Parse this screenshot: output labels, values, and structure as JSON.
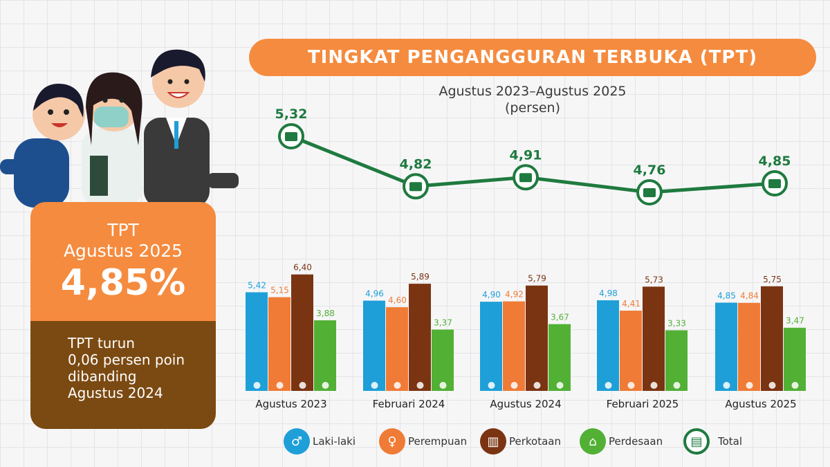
{
  "header": {
    "title": "TINGKAT PENGANGGURAN TERBUKA (TPT)",
    "period": "Agustus 2023–Agustus 2025",
    "unit": "(persen)"
  },
  "summary": {
    "label": "TPT",
    "period": "Agustus 2025",
    "value": "4,85%",
    "note_lines": [
      "TPT turun",
      "0,06 persen poin",
      "dibanding",
      "Agustus 2024"
    ]
  },
  "colors": {
    "accent": "#f58b3e",
    "brown": "#7b4a12",
    "laki": "#1e9fd8",
    "perempuan": "#ef7b36",
    "perkotaan": "#7b3412",
    "perdesaan": "#52b035",
    "total": "#1f7a3f"
  },
  "chart_data": {
    "type": "bar",
    "categories": [
      "Agustus 2023",
      "Februari 2024",
      "Agustus 2024",
      "Februari 2025",
      "Agustus 2025"
    ],
    "series": [
      {
        "name": "Laki-laki",
        "color": "#1e9fd8",
        "icon": "male-icon",
        "values": [
          5.42,
          4.96,
          4.9,
          4.98,
          4.85
        ],
        "labels": [
          "5,42",
          "4,96",
          "4,90",
          "4,98",
          "4,85"
        ]
      },
      {
        "name": "Perempuan",
        "color": "#ef7b36",
        "icon": "female-icon",
        "values": [
          5.15,
          4.6,
          4.92,
          4.41,
          4.84
        ],
        "labels": [
          "5,15",
          "4,60",
          "4,92",
          "4,41",
          "4,84"
        ]
      },
      {
        "name": "Perkotaan",
        "color": "#7b3412",
        "icon": "city-icon",
        "values": [
          6.4,
          5.89,
          5.79,
          5.73,
          5.75
        ],
        "labels": [
          "6,40",
          "5,89",
          "5,79",
          "5,73",
          "5,75"
        ]
      },
      {
        "name": "Perdesaan",
        "color": "#52b035",
        "icon": "village-icon",
        "values": [
          3.88,
          3.37,
          3.67,
          3.33,
          3.47
        ],
        "labels": [
          "3,88",
          "3,37",
          "3,67",
          "3,33",
          "3,47"
        ]
      }
    ],
    "total": {
      "name": "Total",
      "color": "#1f7a3f",
      "icon": "briefcase-icon",
      "values": [
        5.32,
        4.82,
        4.91,
        4.76,
        4.85
      ],
      "labels": [
        "5,32",
        "4,82",
        "4,91",
        "4,76",
        "4,85"
      ]
    },
    "title": "TINGKAT PENGANGGURAN TERBUKA (TPT)",
    "ylabel": "(persen)",
    "legend_position": "bottom",
    "grid": false
  },
  "legend": [
    {
      "label": "Laki-laki",
      "color": "#1e9fd8",
      "icon": "male-icon"
    },
    {
      "label": "Perempuan",
      "color": "#ef7b36",
      "icon": "female-icon"
    },
    {
      "label": "Perkotaan",
      "color": "#7b3412",
      "icon": "city-icon"
    },
    {
      "label": "Perdesaan",
      "color": "#52b035",
      "icon": "village-icon"
    },
    {
      "label": "Total",
      "color": "#1f7a3f",
      "icon": "briefcase-icon"
    }
  ]
}
